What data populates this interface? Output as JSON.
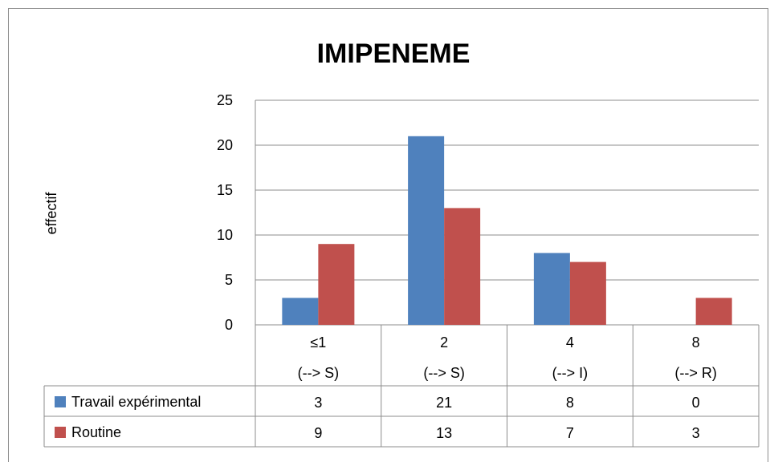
{
  "chart_data": {
    "type": "bar",
    "title": "IMIPENEME",
    "ylabel": "effectif",
    "xlabel": "",
    "ylim": [
      0,
      25
    ],
    "yticks": [
      0,
      5,
      10,
      15,
      20,
      25
    ],
    "grid": true,
    "legend": "data-table-left",
    "categories": [
      {
        "line1": "≤1",
        "line2": "(--> S)"
      },
      {
        "line1": "2",
        "line2": "(--> S)"
      },
      {
        "line1": "4",
        "line2": "(--> I)"
      },
      {
        "line1": "8",
        "line2": "(--> R)"
      }
    ],
    "series": [
      {
        "name": "Travail expérimental",
        "color": "#4f81bd",
        "values": [
          3,
          21,
          8,
          0
        ]
      },
      {
        "name": "Routine",
        "color": "#c0504d",
        "values": [
          9,
          13,
          7,
          3
        ]
      }
    ]
  }
}
